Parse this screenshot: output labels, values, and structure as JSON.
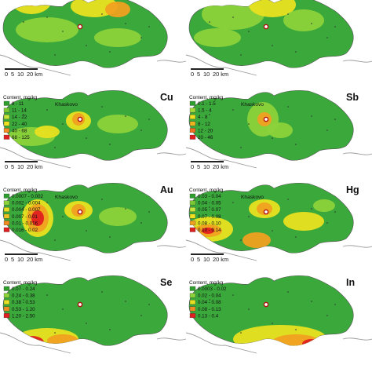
{
  "town": "Khaskovo",
  "legend_title": "Content, mg/kg",
  "scale": {
    "ticks": [
      "0",
      "5",
      "10"
    ],
    "label": "20 km"
  },
  "colors": {
    "land": "#3aa83a",
    "land_light": "#8cd23a",
    "yellow": "#e8e020",
    "orange": "#f0a020",
    "red": "#e02020",
    "border": "#9a9a9a"
  },
  "panels": [
    {
      "element": "",
      "legend": []
    },
    {
      "element": "",
      "legend": []
    },
    {
      "element": "Cu",
      "legend": [
        {
          "range": "8 - 11",
          "color": "#2e9e2e"
        },
        {
          "range": "11 - 14",
          "color": "#7cc832"
        },
        {
          "range": "14 - 22",
          "color": "#c8e63a"
        },
        {
          "range": "22 - 40",
          "color": "#f0e020"
        },
        {
          "range": "40 - 68",
          "color": "#f08c20"
        },
        {
          "range": "68 - 125",
          "color": "#e02020"
        }
      ]
    },
    {
      "element": "Sb",
      "legend": [
        {
          "range": "0.1 - 1.5",
          "color": "#2e9e2e"
        },
        {
          "range": "1.5 - 4",
          "color": "#a6d83a"
        },
        {
          "range": "4 - 8",
          "color": "#f0e020"
        },
        {
          "range": "8 - 12",
          "color": "#f0b020"
        },
        {
          "range": "12 - 20",
          "color": "#f07020"
        },
        {
          "range": "20 - 46",
          "color": "#e02020"
        }
      ]
    },
    {
      "element": "Au",
      "legend": [
        {
          "range": "0.0007 - 0.002",
          "color": "#2e9e2e"
        },
        {
          "range": "0.002 - 0.004",
          "color": "#8cd23a"
        },
        {
          "range": "0.004 - 0.007",
          "color": "#e8e020"
        },
        {
          "range": "0.007 - 0.01",
          "color": "#f0c020"
        },
        {
          "range": "0.01 - 0.016",
          "color": "#f08c20"
        },
        {
          "range": "0.016 - 0.02",
          "color": "#e02020"
        }
      ]
    },
    {
      "element": "Hg",
      "legend": [
        {
          "range": "0.03 - 0.04",
          "color": "#2e9e2e"
        },
        {
          "range": "0.04 - 0.05",
          "color": "#7cc832"
        },
        {
          "range": "0.05 - 0.07",
          "color": "#c8e63a"
        },
        {
          "range": "0.07 - 0.08",
          "color": "#f0e020"
        },
        {
          "range": "0.08 - 0.10",
          "color": "#f0a020"
        },
        {
          "range": "0.10 - 0.14",
          "color": "#e02020"
        }
      ]
    },
    {
      "element": "Se",
      "legend": [
        {
          "range": "0.07 - 0.24",
          "color": "#2e9e2e"
        },
        {
          "range": "0.24 - 0.38",
          "color": "#8cd23a"
        },
        {
          "range": "0.38 - 0.53",
          "color": "#e8e020"
        },
        {
          "range": "0.53 - 1.20",
          "color": "#f08c20"
        },
        {
          "range": "1.20 - 2.50",
          "color": "#e02020"
        }
      ]
    },
    {
      "element": "In",
      "legend": [
        {
          "range": "0.0003 - 0.02",
          "color": "#2e9e2e"
        },
        {
          "range": "0.02 - 0.04",
          "color": "#8cd23a"
        },
        {
          "range": "0.04 - 0.08",
          "color": "#e8e020"
        },
        {
          "range": "0.08 - 0.13",
          "color": "#f08c20"
        },
        {
          "range": "0.13 - 0.4",
          "color": "#e02020"
        }
      ]
    }
  ]
}
